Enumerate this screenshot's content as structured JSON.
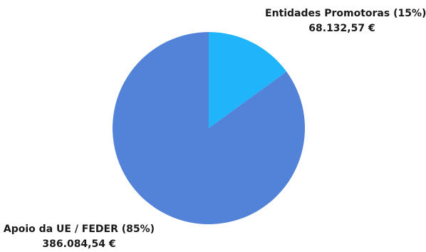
{
  "chart_data": {
    "type": "pie",
    "slices": [
      {
        "name": "Entidades Promotoras (15%)",
        "value_label": "68.132,57 €",
        "value": 68132.57,
        "percent": 15,
        "color": "#20b4fb"
      },
      {
        "name": "Apoio da UE / FEDER (85%)",
        "value_label": "386.084,54 €",
        "value": 386084.54,
        "percent": 85,
        "color": "#5283d8"
      }
    ]
  }
}
